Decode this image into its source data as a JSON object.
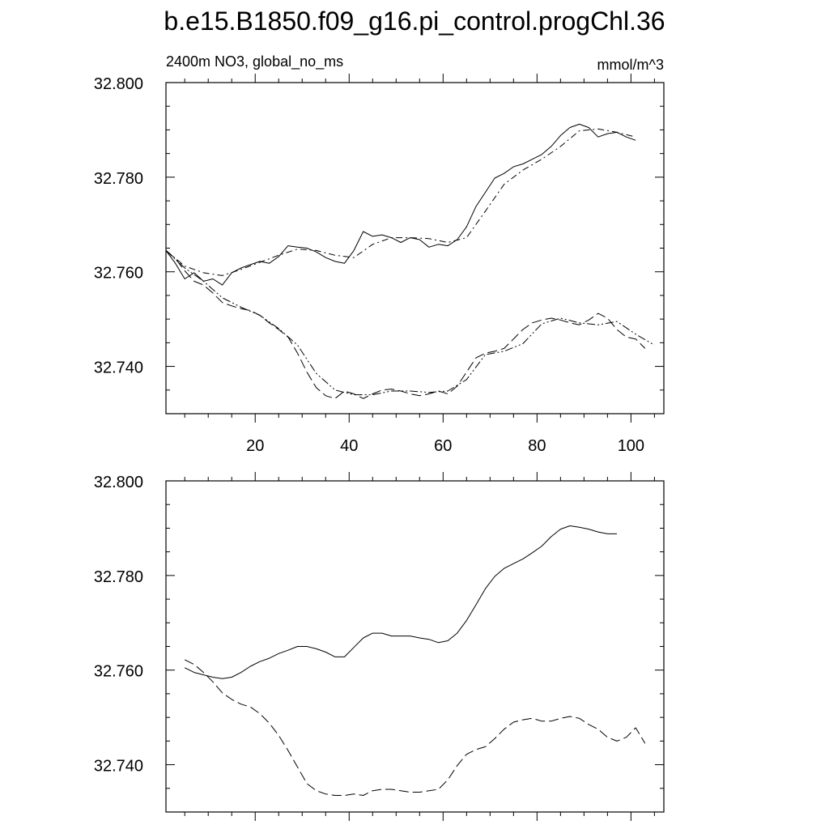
{
  "title": "b.e15.B1850.f09_g16.pi_control.progChl.36",
  "chart_data": [
    {
      "type": "line",
      "panel": "top",
      "left_label": "2400m NO3, global_no_ms",
      "right_label": "mmol/m^3",
      "xlim": [
        1,
        107
      ],
      "ylim": [
        32.73,
        32.8
      ],
      "x_ticks": [
        20,
        40,
        60,
        80,
        100
      ],
      "x_tick_labels": [
        "20",
        "40",
        "60",
        "80",
        "100"
      ],
      "y_ticks": [
        32.8,
        32.78,
        32.76,
        32.74
      ],
      "y_tick_labels": [
        "32.800",
        "32.780",
        "32.760",
        "32.740"
      ],
      "grid": false,
      "series": [
        {
          "style": "solid",
          "x": [
            1,
            3,
            5,
            7,
            9,
            11,
            13,
            15,
            17,
            19,
            21,
            23,
            25,
            27,
            29,
            31,
            33,
            35,
            37,
            39,
            41,
            43,
            45,
            47,
            49,
            51,
            53,
            55,
            57,
            59,
            61,
            63,
            65,
            67,
            69,
            71,
            73,
            75,
            77,
            79,
            81,
            83,
            85,
            87,
            89,
            91,
            93,
            95,
            97,
            99,
            101
          ],
          "y": [
            32.7645,
            32.7618,
            32.7585,
            32.7598,
            32.758,
            32.7585,
            32.7572,
            32.7598,
            32.7608,
            32.7615,
            32.7622,
            32.7618,
            32.7632,
            32.7655,
            32.7652,
            32.765,
            32.7642,
            32.763,
            32.7622,
            32.7618,
            32.7645,
            32.7685,
            32.7675,
            32.7678,
            32.7672,
            32.7662,
            32.7672,
            32.7668,
            32.7652,
            32.7658,
            32.7655,
            32.7668,
            32.7695,
            32.7738,
            32.7768,
            32.7798,
            32.7808,
            32.7822,
            32.7828,
            32.7838,
            32.7848,
            32.7865,
            32.7888,
            32.7905,
            32.7912,
            32.7905,
            32.7885,
            32.7892,
            32.7895,
            32.7885,
            32.7878
          ]
        },
        {
          "style": "dash-dot",
          "x": [
            1,
            5,
            9,
            13,
            17,
            21,
            25,
            29,
            33,
            37,
            41,
            45,
            49,
            53,
            57,
            61,
            65,
            69,
            73,
            77,
            81,
            85,
            89,
            93,
            97,
            101
          ],
          "y": [
            32.7645,
            32.7612,
            32.7598,
            32.7592,
            32.7605,
            32.762,
            32.7635,
            32.7648,
            32.7645,
            32.7635,
            32.763,
            32.7658,
            32.7672,
            32.7672,
            32.767,
            32.7662,
            32.7672,
            32.7728,
            32.7785,
            32.7815,
            32.7838,
            32.7865,
            32.7898,
            32.7902,
            32.7895,
            32.7885
          ]
        },
        {
          "style": "long-dash",
          "x": [
            1,
            3,
            5,
            7,
            9,
            11,
            13,
            15,
            17,
            19,
            21,
            23,
            25,
            27,
            29,
            31,
            33,
            35,
            37,
            39,
            41,
            43,
            45,
            47,
            49,
            51,
            53,
            55,
            57,
            59,
            61,
            63,
            65,
            67,
            69,
            71,
            73,
            75,
            77,
            79,
            81,
            83,
            85,
            87,
            89,
            91,
            93,
            95,
            97,
            99,
            101,
            103
          ],
          "y": [
            32.7645,
            32.7628,
            32.7602,
            32.758,
            32.7572,
            32.7555,
            32.7535,
            32.7528,
            32.7522,
            32.7518,
            32.7508,
            32.7492,
            32.7478,
            32.7462,
            32.7428,
            32.7388,
            32.7355,
            32.7338,
            32.7332,
            32.7348,
            32.7342,
            32.7332,
            32.7342,
            32.735,
            32.7352,
            32.7348,
            32.7342,
            32.7338,
            32.7342,
            32.7348,
            32.7342,
            32.7358,
            32.7388,
            32.7418,
            32.7428,
            32.7432,
            32.7438,
            32.7458,
            32.7478,
            32.7492,
            32.7498,
            32.7502,
            32.7498,
            32.7492,
            32.7488,
            32.7498,
            32.7512,
            32.7502,
            32.7478,
            32.7462,
            32.7458,
            32.7438
          ]
        },
        {
          "style": "dash-dot-dot",
          "x": [
            1,
            5,
            9,
            13,
            17,
            21,
            25,
            29,
            33,
            37,
            41,
            45,
            49,
            53,
            57,
            61,
            65,
            69,
            73,
            77,
            81,
            85,
            89,
            93,
            97,
            101,
            105
          ],
          "y": [
            32.7645,
            32.7608,
            32.758,
            32.7545,
            32.7525,
            32.7508,
            32.748,
            32.7445,
            32.7385,
            32.735,
            32.734,
            32.734,
            32.7348,
            32.7348,
            32.7345,
            32.7348,
            32.7372,
            32.7425,
            32.7432,
            32.7448,
            32.749,
            32.7502,
            32.7492,
            32.7488,
            32.7495,
            32.7468,
            32.7445
          ]
        }
      ]
    },
    {
      "type": "line",
      "panel": "bottom",
      "xlim": [
        1,
        107
      ],
      "ylim": [
        32.73,
        32.8
      ],
      "x_ticks": [
        20,
        40,
        60,
        80,
        100
      ],
      "x_tick_labels": [],
      "y_ticks": [
        32.8,
        32.78,
        32.76,
        32.74
      ],
      "y_tick_labels": [
        "32.800",
        "32.780",
        "32.760",
        "32.740"
      ],
      "grid": false,
      "series": [
        {
          "style": "solid",
          "x": [
            5,
            7,
            9,
            11,
            13,
            15,
            17,
            19,
            21,
            23,
            25,
            27,
            29,
            31,
            33,
            35,
            37,
            39,
            41,
            43,
            45,
            47,
            49,
            51,
            53,
            55,
            57,
            59,
            61,
            63,
            65,
            67,
            69,
            71,
            73,
            75,
            77,
            79,
            81,
            83,
            85,
            87,
            89,
            91,
            93,
            95,
            97
          ],
          "y": [
            32.7605,
            32.7595,
            32.759,
            32.7585,
            32.7582,
            32.7585,
            32.7595,
            32.7608,
            32.7618,
            32.7625,
            32.7635,
            32.7642,
            32.765,
            32.765,
            32.7645,
            32.7638,
            32.7628,
            32.7628,
            32.7648,
            32.7668,
            32.7678,
            32.7678,
            32.7672,
            32.7672,
            32.7672,
            32.7668,
            32.7665,
            32.7658,
            32.7662,
            32.7678,
            32.7705,
            32.7738,
            32.7772,
            32.7798,
            32.7815,
            32.7825,
            32.7835,
            32.7848,
            32.7862,
            32.7882,
            32.7898,
            32.7905,
            32.7902,
            32.7898,
            32.7892,
            32.7888,
            32.7888
          ]
        },
        {
          "style": "long-dash",
          "x": [
            5,
            7,
            9,
            11,
            13,
            15,
            17,
            19,
            21,
            23,
            25,
            27,
            29,
            31,
            33,
            35,
            37,
            39,
            41,
            43,
            45,
            47,
            49,
            51,
            53,
            55,
            57,
            59,
            61,
            63,
            65,
            67,
            69,
            71,
            73,
            75,
            77,
            79,
            81,
            83,
            85,
            87,
            89,
            91,
            93,
            95,
            97,
            99,
            101,
            103
          ],
          "y": [
            32.7622,
            32.7612,
            32.7595,
            32.7575,
            32.7552,
            32.7538,
            32.7528,
            32.7522,
            32.7508,
            32.7488,
            32.7462,
            32.743,
            32.7395,
            32.736,
            32.7345,
            32.7338,
            32.7335,
            32.7335,
            32.7338,
            32.7335,
            32.7345,
            32.7348,
            32.7348,
            32.7345,
            32.7342,
            32.7342,
            32.7345,
            32.7348,
            32.7368,
            32.7398,
            32.7422,
            32.7432,
            32.7438,
            32.7455,
            32.7475,
            32.749,
            32.7495,
            32.7498,
            32.7492,
            32.7492,
            32.7498,
            32.7502,
            32.7498,
            32.7485,
            32.7475,
            32.7458,
            32.745,
            32.7458,
            32.7478,
            32.7445
          ]
        }
      ]
    }
  ]
}
